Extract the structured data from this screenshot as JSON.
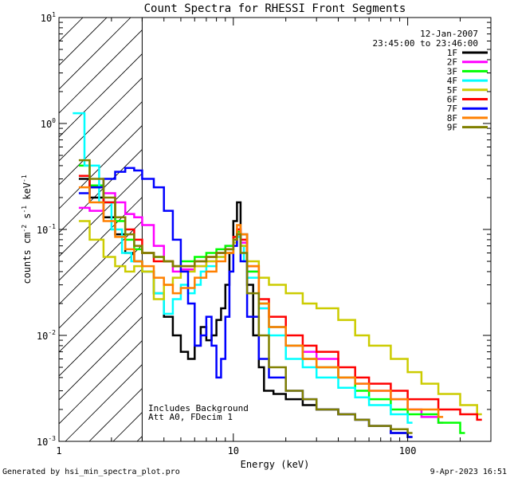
{
  "chart_data": {
    "type": "line",
    "title": "Count Spectra for RHESSI Front Segments",
    "xlabel": "Energy (keV)",
    "ylabel_parts": [
      "counts cm",
      "-2",
      " s",
      "-1",
      " keV",
      "-1"
    ],
    "xscale": "log",
    "yscale": "log",
    "xlim": [
      1,
      300
    ],
    "ylim": [
      0.001,
      10
    ],
    "x_ticks": [
      {
        "value": 1,
        "label": "1"
      },
      {
        "value": 10,
        "label": "10"
      },
      {
        "value": 100,
        "label": "100"
      }
    ],
    "y_ticks": [
      {
        "value": 0.001,
        "mantissa": "10",
        "exp": "-3"
      },
      {
        "value": 0.01,
        "mantissa": "10",
        "exp": "-2"
      },
      {
        "value": 0.1,
        "mantissa": "10",
        "exp": "-1"
      },
      {
        "value": 1,
        "mantissa": "10",
        "exp": "0"
      },
      {
        "value": 10,
        "mantissa": "10",
        "exp": "1"
      }
    ],
    "hatched_region": [
      1,
      3
    ],
    "date": "12-Jan-2007",
    "time_range": "23:45:00 to 23:46:00",
    "annotations": [
      "Includes Background",
      "Att A0, FDecim 1"
    ],
    "series": [
      {
        "name": "1F",
        "color": "#000000",
        "points": [
          [
            1.3,
            0.3
          ],
          [
            1.5,
            0.2
          ],
          [
            1.8,
            0.13
          ],
          [
            2.1,
            0.09
          ],
          [
            2.4,
            0.06
          ],
          [
            2.7,
            0.05
          ],
          [
            3.0,
            0.04
          ],
          [
            3.5,
            0.025
          ],
          [
            4.0,
            0.015
          ],
          [
            4.5,
            0.01
          ],
          [
            5.0,
            0.007
          ],
          [
            5.5,
            0.006
          ],
          [
            6.0,
            0.008
          ],
          [
            6.5,
            0.012
          ],
          [
            7.0,
            0.009
          ],
          [
            7.5,
            0.01
          ],
          [
            8.0,
            0.014
          ],
          [
            8.5,
            0.018
          ],
          [
            9.0,
            0.03
          ],
          [
            9.5,
            0.06
          ],
          [
            10.0,
            0.12
          ],
          [
            10.5,
            0.18
          ],
          [
            11.0,
            0.09
          ],
          [
            12,
            0.03
          ],
          [
            13,
            0.01
          ],
          [
            14,
            0.005
          ],
          [
            15,
            0.003
          ],
          [
            17,
            0.0028
          ],
          [
            20,
            0.0025
          ],
          [
            25,
            0.0022
          ],
          [
            30,
            0.002
          ],
          [
            40,
            0.0018
          ],
          [
            50,
            0.0016
          ],
          [
            60,
            0.0014
          ],
          [
            80,
            0.0012
          ],
          [
            100,
            0.0011
          ]
        ]
      },
      {
        "name": "2F",
        "color": "#ff00ff",
        "points": [
          [
            1.3,
            0.16
          ],
          [
            1.5,
            0.15
          ],
          [
            1.8,
            0.22
          ],
          [
            2.1,
            0.18
          ],
          [
            2.4,
            0.14
          ],
          [
            2.7,
            0.13
          ],
          [
            3.0,
            0.11
          ],
          [
            3.5,
            0.07
          ],
          [
            4.0,
            0.05
          ],
          [
            4.5,
            0.04
          ],
          [
            5.0,
            0.042
          ],
          [
            6.0,
            0.045
          ],
          [
            7.0,
            0.05
          ],
          [
            8.0,
            0.06
          ],
          [
            9.0,
            0.07
          ],
          [
            10.0,
            0.08
          ],
          [
            10.5,
            0.1
          ],
          [
            11.0,
            0.075
          ],
          [
            12,
            0.04
          ],
          [
            14,
            0.018
          ],
          [
            16,
            0.012
          ],
          [
            20,
            0.008
          ],
          [
            25,
            0.007
          ],
          [
            30,
            0.006
          ],
          [
            40,
            0.004
          ],
          [
            50,
            0.0035
          ],
          [
            60,
            0.003
          ],
          [
            80,
            0.0025
          ],
          [
            100,
            0.002
          ],
          [
            120,
            0.0017
          ],
          [
            150,
            0.0015
          ]
        ]
      },
      {
        "name": "3F",
        "color": "#00ff00",
        "points": [
          [
            1.3,
            0.4
          ],
          [
            1.5,
            0.26
          ],
          [
            1.8,
            0.18
          ],
          [
            2.1,
            0.12
          ],
          [
            2.4,
            0.08
          ],
          [
            2.7,
            0.065
          ],
          [
            3.0,
            0.06
          ],
          [
            3.5,
            0.055
          ],
          [
            4.0,
            0.05
          ],
          [
            4.5,
            0.045
          ],
          [
            5.0,
            0.05
          ],
          [
            6.0,
            0.055
          ],
          [
            7.0,
            0.06
          ],
          [
            8.0,
            0.065
          ],
          [
            9.0,
            0.07
          ],
          [
            10.0,
            0.085
          ],
          [
            10.5,
            0.095
          ],
          [
            11.0,
            0.07
          ],
          [
            12,
            0.04
          ],
          [
            14,
            0.02
          ],
          [
            16,
            0.012
          ],
          [
            20,
            0.008
          ],
          [
            25,
            0.006
          ],
          [
            30,
            0.005
          ],
          [
            40,
            0.004
          ],
          [
            50,
            0.003
          ],
          [
            60,
            0.0025
          ],
          [
            80,
            0.002
          ],
          [
            100,
            0.0018
          ],
          [
            150,
            0.0015
          ],
          [
            200,
            0.0012
          ]
        ]
      },
      {
        "name": "4F",
        "color": "#00ffff",
        "points": [
          [
            1.2,
            1.25
          ],
          [
            1.4,
            0.4
          ],
          [
            1.7,
            0.18
          ],
          [
            2.0,
            0.1
          ],
          [
            2.3,
            0.06
          ],
          [
            2.6,
            0.05
          ],
          [
            3.0,
            0.04
          ],
          [
            3.5,
            0.025
          ],
          [
            4.0,
            0.016
          ],
          [
            4.5,
            0.022
          ],
          [
            5.0,
            0.03
          ],
          [
            5.5,
            0.025
          ],
          [
            6.0,
            0.03
          ],
          [
            6.5,
            0.04
          ],
          [
            7.0,
            0.045
          ],
          [
            8.0,
            0.055
          ],
          [
            9.0,
            0.065
          ],
          [
            10.0,
            0.08
          ],
          [
            10.5,
            0.085
          ],
          [
            11.0,
            0.07
          ],
          [
            11.5,
            0.05
          ],
          [
            12,
            0.035
          ],
          [
            14,
            0.018
          ],
          [
            16,
            0.01
          ],
          [
            20,
            0.006
          ],
          [
            25,
            0.005
          ],
          [
            30,
            0.004
          ],
          [
            40,
            0.0032
          ],
          [
            50,
            0.0026
          ],
          [
            60,
            0.0022
          ],
          [
            80,
            0.0018
          ],
          [
            100,
            0.0015
          ]
        ]
      },
      {
        "name": "5F",
        "color": "#cccc00",
        "points": [
          [
            1.3,
            0.12
          ],
          [
            1.5,
            0.08
          ],
          [
            1.8,
            0.055
          ],
          [
            2.1,
            0.045
          ],
          [
            2.4,
            0.04
          ],
          [
            2.7,
            0.045
          ],
          [
            3.0,
            0.04
          ],
          [
            3.5,
            0.022
          ],
          [
            4.0,
            0.03
          ],
          [
            4.5,
            0.035
          ],
          [
            5.0,
            0.04
          ],
          [
            6.0,
            0.045
          ],
          [
            7.0,
            0.05
          ],
          [
            8.0,
            0.055
          ],
          [
            9.0,
            0.06
          ],
          [
            10.0,
            0.075
          ],
          [
            10.5,
            0.09
          ],
          [
            11.0,
            0.07
          ],
          [
            12,
            0.05
          ],
          [
            14,
            0.035
          ],
          [
            16,
            0.03
          ],
          [
            20,
            0.025
          ],
          [
            25,
            0.02
          ],
          [
            30,
            0.018
          ],
          [
            40,
            0.014
          ],
          [
            50,
            0.01
          ],
          [
            60,
            0.008
          ],
          [
            80,
            0.006
          ],
          [
            100,
            0.0045
          ],
          [
            120,
            0.0035
          ],
          [
            150,
            0.0028
          ],
          [
            200,
            0.0022
          ],
          [
            250,
            0.0018
          ]
        ]
      },
      {
        "name": "6F",
        "color": "#ff0000",
        "points": [
          [
            1.3,
            0.32
          ],
          [
            1.5,
            0.25
          ],
          [
            1.8,
            0.18
          ],
          [
            2.1,
            0.13
          ],
          [
            2.4,
            0.1
          ],
          [
            2.7,
            0.08
          ],
          [
            3.0,
            0.06
          ],
          [
            3.5,
            0.05
          ],
          [
            4.0,
            0.05
          ],
          [
            4.5,
            0.045
          ],
          [
            5.0,
            0.045
          ],
          [
            6.0,
            0.05
          ],
          [
            7.0,
            0.055
          ],
          [
            8.0,
            0.06
          ],
          [
            9.0,
            0.065
          ],
          [
            10.0,
            0.085
          ],
          [
            10.5,
            0.1
          ],
          [
            11.0,
            0.08
          ],
          [
            12,
            0.045
          ],
          [
            14,
            0.022
          ],
          [
            16,
            0.015
          ],
          [
            20,
            0.01
          ],
          [
            25,
            0.008
          ],
          [
            30,
            0.007
          ],
          [
            40,
            0.005
          ],
          [
            50,
            0.004
          ],
          [
            60,
            0.0035
          ],
          [
            80,
            0.003
          ],
          [
            100,
            0.0025
          ],
          [
            150,
            0.002
          ],
          [
            200,
            0.0018
          ],
          [
            250,
            0.0016
          ]
        ]
      },
      {
        "name": "7F",
        "color": "#0000ff",
        "points": [
          [
            1.3,
            0.22
          ],
          [
            1.5,
            0.25
          ],
          [
            1.8,
            0.3
          ],
          [
            2.1,
            0.35
          ],
          [
            2.4,
            0.38
          ],
          [
            2.7,
            0.36
          ],
          [
            3.0,
            0.3
          ],
          [
            3.5,
            0.25
          ],
          [
            4.0,
            0.15
          ],
          [
            4.5,
            0.08
          ],
          [
            5.0,
            0.04
          ],
          [
            5.5,
            0.02
          ],
          [
            6.0,
            0.008
          ],
          [
            6.5,
            0.01
          ],
          [
            7.0,
            0.015
          ],
          [
            7.5,
            0.008
          ],
          [
            8.0,
            0.004
          ],
          [
            8.5,
            0.006
          ],
          [
            9.0,
            0.015
          ],
          [
            9.5,
            0.04
          ],
          [
            10.0,
            0.07
          ],
          [
            10.5,
            0.09
          ],
          [
            11.0,
            0.05
          ],
          [
            12,
            0.015
          ],
          [
            14,
            0.006
          ],
          [
            16,
            0.004
          ],
          [
            20,
            0.003
          ],
          [
            25,
            0.0025
          ],
          [
            30,
            0.002
          ],
          [
            40,
            0.0018
          ],
          [
            50,
            0.0016
          ],
          [
            60,
            0.0014
          ],
          [
            80,
            0.0012
          ],
          [
            100,
            0.0011
          ]
        ]
      },
      {
        "name": "8F",
        "color": "#ff8000",
        "points": [
          [
            1.3,
            0.25
          ],
          [
            1.5,
            0.18
          ],
          [
            1.8,
            0.12
          ],
          [
            2.1,
            0.085
          ],
          [
            2.4,
            0.065
          ],
          [
            2.7,
            0.05
          ],
          [
            3.0,
            0.045
          ],
          [
            3.5,
            0.035
          ],
          [
            4.0,
            0.03
          ],
          [
            4.5,
            0.025
          ],
          [
            5.0,
            0.028
          ],
          [
            6.0,
            0.035
          ],
          [
            7.0,
            0.04
          ],
          [
            8.0,
            0.05
          ],
          [
            9.0,
            0.06
          ],
          [
            10.0,
            0.08
          ],
          [
            10.5,
            0.11
          ],
          [
            11.0,
            0.09
          ],
          [
            12,
            0.045
          ],
          [
            14,
            0.02
          ],
          [
            16,
            0.012
          ],
          [
            20,
            0.008
          ],
          [
            25,
            0.006
          ],
          [
            30,
            0.005
          ],
          [
            40,
            0.004
          ],
          [
            50,
            0.0035
          ],
          [
            60,
            0.003
          ],
          [
            80,
            0.0025
          ],
          [
            100,
            0.002
          ],
          [
            150,
            0.0017
          ]
        ]
      },
      {
        "name": "9F",
        "color": "#808000",
        "points": [
          [
            1.3,
            0.45
          ],
          [
            1.5,
            0.3
          ],
          [
            1.8,
            0.2
          ],
          [
            2.1,
            0.13
          ],
          [
            2.4,
            0.09
          ],
          [
            2.7,
            0.07
          ],
          [
            3.0,
            0.06
          ],
          [
            3.5,
            0.055
          ],
          [
            4.0,
            0.05
          ],
          [
            4.5,
            0.045
          ],
          [
            5.0,
            0.045
          ],
          [
            6.0,
            0.05
          ],
          [
            7.0,
            0.055
          ],
          [
            8.0,
            0.06
          ],
          [
            9.0,
            0.065
          ],
          [
            10.0,
            0.08
          ],
          [
            10.5,
            0.09
          ],
          [
            11.0,
            0.06
          ],
          [
            12,
            0.025
          ],
          [
            14,
            0.01
          ],
          [
            16,
            0.005
          ],
          [
            20,
            0.003
          ],
          [
            25,
            0.0025
          ],
          [
            30,
            0.002
          ],
          [
            40,
            0.0018
          ],
          [
            50,
            0.0016
          ],
          [
            60,
            0.0014
          ],
          [
            80,
            0.0013
          ],
          [
            100,
            0.0012
          ]
        ]
      }
    ]
  },
  "footer": {
    "generated_by": "Generated by hsi_min_spectra_plot.pro",
    "timestamp": "9-Apr-2023 16:51"
  }
}
